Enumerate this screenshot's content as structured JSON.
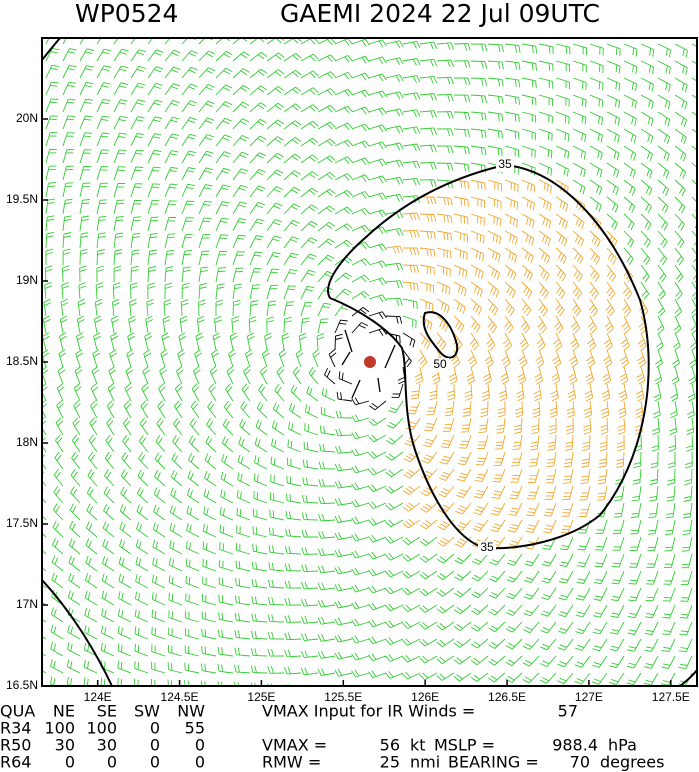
{
  "header": {
    "id": "WP0524",
    "title": "GAEMI 2024 22 Jul 09UTC"
  },
  "map": {
    "xlim": [
      123.66,
      127.66
    ],
    "ylim": [
      16.5,
      20.5
    ],
    "xticks": [
      {
        "value": 124,
        "label": "124E"
      },
      {
        "value": 124.5,
        "label": "124.5E"
      },
      {
        "value": 125,
        "label": "125E"
      },
      {
        "value": 125.5,
        "label": "125.5E"
      },
      {
        "value": 126,
        "label": "126E"
      },
      {
        "value": 126.5,
        "label": "126.5E"
      },
      {
        "value": 127,
        "label": "127E"
      },
      {
        "value": 127.5,
        "label": "127.5E"
      }
    ],
    "yticks": [
      {
        "value": 16.5,
        "label": "16.5N"
      },
      {
        "value": 17,
        "label": "17N"
      },
      {
        "value": 17.5,
        "label": "17.5N"
      },
      {
        "value": 18,
        "label": "18N"
      },
      {
        "value": 18.5,
        "label": "18.5N"
      },
      {
        "value": 19,
        "label": "19N"
      },
      {
        "value": 19.5,
        "label": "19.5N"
      },
      {
        "value": 20,
        "label": "20N"
      }
    ],
    "contour_labels": [
      "35",
      "50",
      "35"
    ]
  },
  "table": {
    "header": [
      "QUA",
      "NE",
      "SE",
      "SW",
      "NW"
    ],
    "rows": [
      [
        "R34",
        100,
        100,
        0,
        55
      ],
      [
        "R50",
        30,
        30,
        0,
        0
      ],
      [
        "R64",
        0,
        0,
        0,
        0
      ]
    ],
    "vmax_ir": {
      "label": "VMAX Input for IR Winds =",
      "value": 57
    },
    "vmax": {
      "label": "VMAX =",
      "value": 56,
      "unit": "kt"
    },
    "mslp": {
      "label": "MSLP =",
      "value": 988.4,
      "unit": "hPa"
    },
    "rmw": {
      "label": "RMW =",
      "value": 25,
      "unit": "nmi"
    },
    "bearing": {
      "label": "BEARING =",
      "value": 70,
      "unit": "degrees"
    }
  }
}
